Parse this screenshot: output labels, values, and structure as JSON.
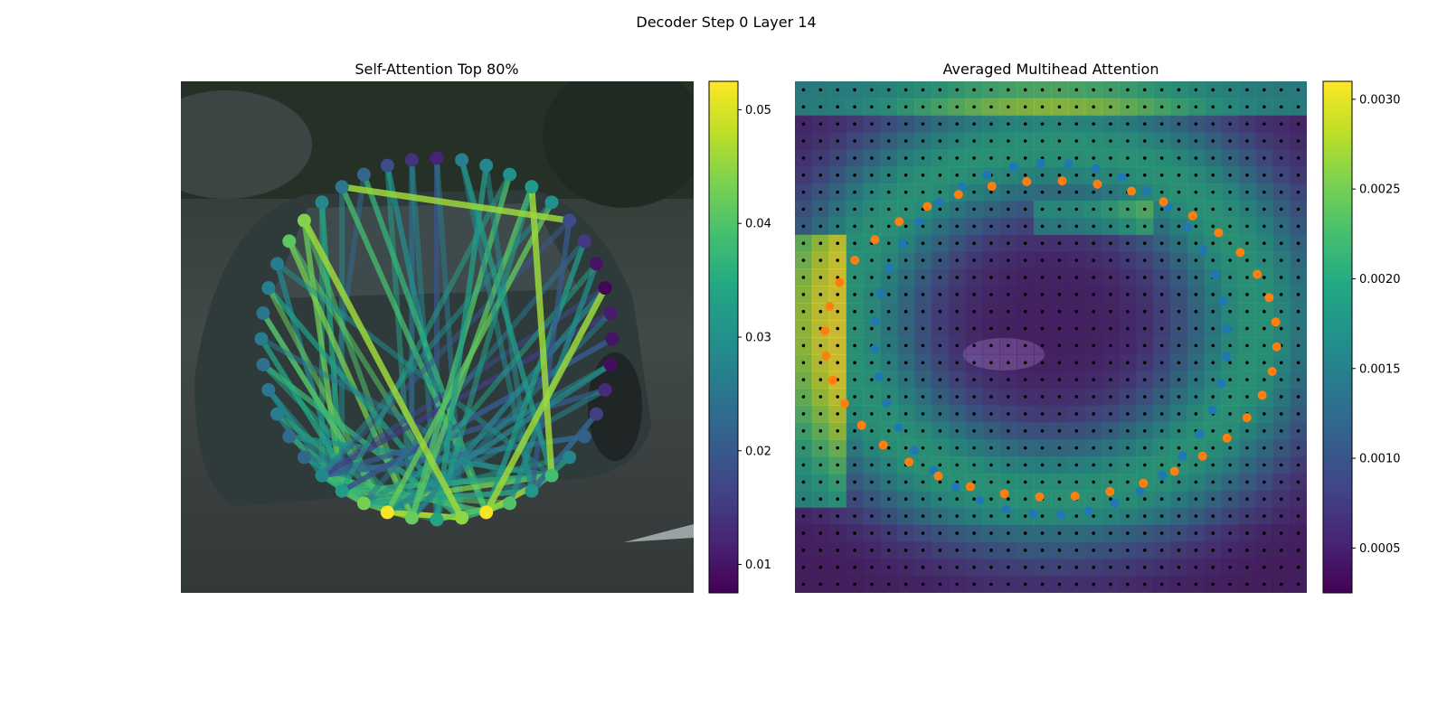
{
  "figure": {
    "suptitle": "Decoder Step 0 Layer 14"
  },
  "chart_data": [
    {
      "type": "network",
      "title": "Self-Attention Top 80%",
      "colormap": "viridis",
      "colorbar": {
        "min": 0.0075,
        "max": 0.0525,
        "ticks": [
          0.01,
          0.02,
          0.03,
          0.04,
          0.05
        ],
        "tick_labels": [
          "0.01",
          "0.02",
          "0.03",
          "0.04",
          "0.05"
        ]
      },
      "node_count": 44,
      "node_values": [
        0.012,
        0.014,
        0.018,
        0.022,
        0.025,
        0.028,
        0.044,
        0.041,
        0.026,
        0.027,
        0.025,
        0.026,
        0.024,
        0.025,
        0.026,
        0.023,
        0.022,
        0.028,
        0.032,
        0.043,
        0.052,
        0.042,
        0.034,
        0.045,
        0.052,
        0.04,
        0.031,
        0.039,
        0.028,
        0.021,
        0.016,
        0.013,
        0.009,
        0.01,
        0.011,
        0.008,
        0.01,
        0.015,
        0.018,
        0.03,
        0.032,
        0.03,
        0.028,
        0.027
      ],
      "edges_top": [
        {
          "from": 4,
          "to": 38
        },
        {
          "from": 35,
          "to": 24
        },
        {
          "from": 40,
          "to": 27
        },
        {
          "from": 6,
          "to": 23
        }
      ],
      "note_background": "photo of a dark car on a road"
    },
    {
      "type": "heatmap",
      "title": "Averaged Multihead Attention",
      "colormap": "viridis",
      "grid_size": [
        30,
        30
      ],
      "colorbar": {
        "min": 0.00025,
        "max": 0.0031,
        "ticks": [
          0.0005,
          0.001,
          0.0015,
          0.002,
          0.0025,
          0.003
        ],
        "tick_labels": [
          "0.0005",
          "0.0010",
          "0.0015",
          "0.0020",
          "0.0025",
          "0.0030"
        ]
      },
      "series": [
        {
          "color": "#1f77b4",
          "count": 40
        },
        {
          "color": "#ff7f0e",
          "count": 40
        }
      ],
      "note_background": "photo of a dark car on a road"
    }
  ]
}
